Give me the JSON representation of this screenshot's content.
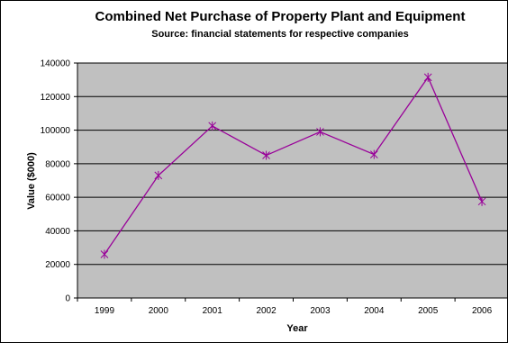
{
  "chart_data": {
    "type": "line",
    "title": "Combined Net Purchase of Property Plant and Equipment",
    "subtitle": "Source: financial statements for respective companies",
    "xlabel": "Year",
    "ylabel": "Value ($000)",
    "categories": [
      "1999",
      "2000",
      "2001",
      "2002",
      "2003",
      "2004",
      "2005",
      "2006"
    ],
    "series": [
      {
        "values": [
          26000,
          73000,
          102500,
          85000,
          99000,
          85500,
          131500,
          57500
        ],
        "color": "#990099"
      }
    ],
    "ylim": [
      0,
      140000
    ],
    "yticks": [
      0,
      20000,
      40000,
      60000,
      80000,
      100000,
      120000,
      140000
    ],
    "plot_background": "#c0c0c0",
    "grid": true,
    "legend": "none",
    "marker": "star"
  }
}
